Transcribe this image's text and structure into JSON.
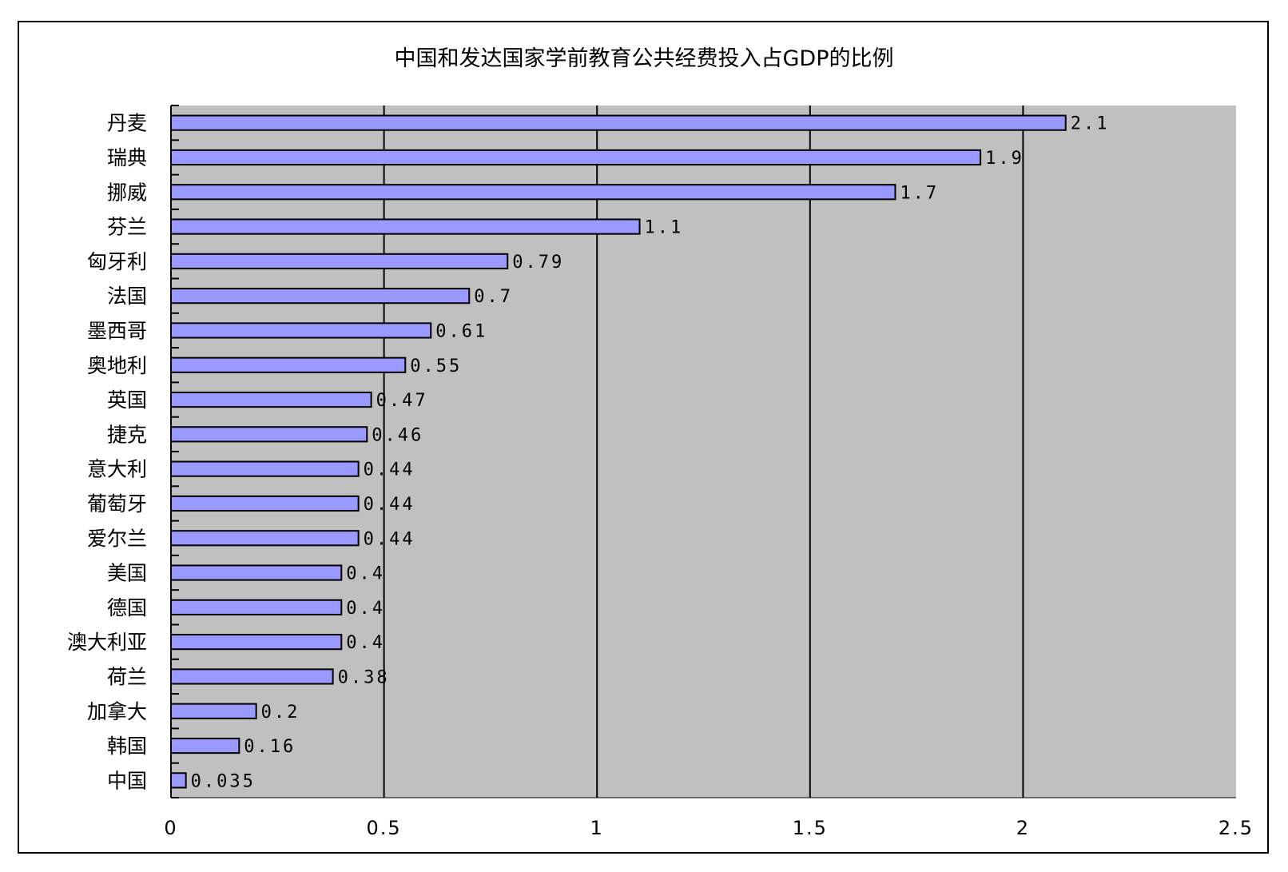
{
  "chart_data": {
    "type": "bar",
    "orientation": "horizontal",
    "title": "中国和发达国家学前教育公共经费投入占GDP的比例",
    "categories": [
      "丹麦",
      "瑞典",
      "挪威",
      "芬兰",
      "匈牙利",
      "法国",
      "墨西哥",
      "奥地利",
      "英国",
      "捷克",
      "意大利",
      "葡萄牙",
      "爱尔兰",
      "美国",
      "德国",
      "澳大利亚",
      "荷兰",
      "加拿大",
      "韩国",
      "中国"
    ],
    "values": [
      2.1,
      1.9,
      1.7,
      1.1,
      0.79,
      0.7,
      0.61,
      0.55,
      0.47,
      0.46,
      0.44,
      0.44,
      0.44,
      0.4,
      0.4,
      0.4,
      0.38,
      0.2,
      0.16,
      0.035
    ],
    "value_labels": [
      "2.1",
      "1.9",
      "1.7",
      "1.1",
      "0.79",
      "0.7",
      "0.61",
      "0.55",
      "0.47",
      "0.46",
      "0.44",
      "0.44",
      "0.44",
      "0.4",
      "0.4",
      "0.4",
      "0.38",
      "0.2",
      "0.16",
      "0.035"
    ],
    "xlim": [
      0,
      2.5
    ],
    "xticks": [
      0,
      0.5,
      1,
      1.5,
      2,
      2.5
    ],
    "xtick_labels": [
      "0",
      "0.5",
      "1",
      "1.5",
      "2",
      "2.5"
    ],
    "grid": "vertical",
    "legend": "none",
    "colors": {
      "bar": "#9999ff",
      "plot_background": "#c0c0c0",
      "gridline": "#000000"
    }
  }
}
